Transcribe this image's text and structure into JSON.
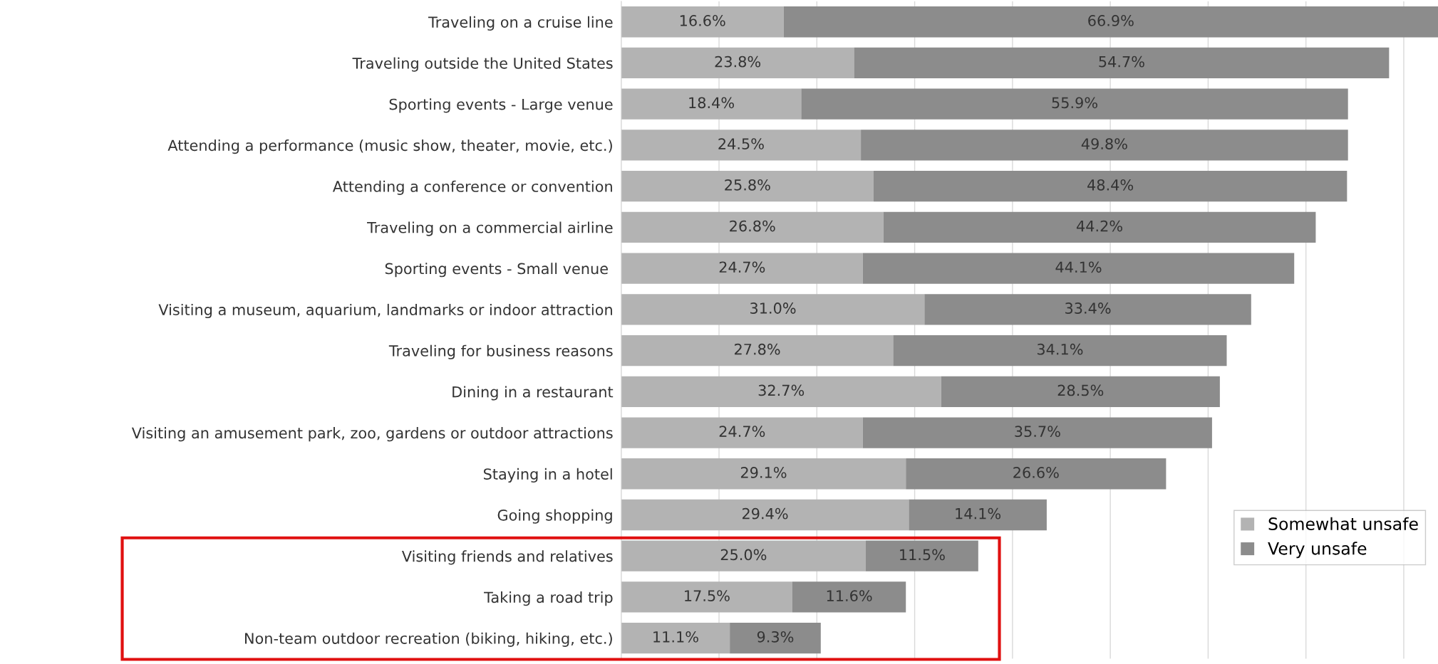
{
  "chart_data": {
    "type": "bar",
    "orientation": "horizontal",
    "stacked": true,
    "categories": [
      "Traveling on a cruise line",
      "Traveling outside the United States",
      "Sporting events - Large venue",
      "Attending a performance (music show, theater, movie, etc.)",
      "Attending a conference or convention",
      "Traveling on a commercial airline",
      "Sporting events - Small venue ",
      "Visiting a museum, aquarium, landmarks or indoor attraction",
      "Traveling for business reasons",
      "Dining in a restaurant",
      "Visiting an amusement park, zoo, gardens or outdoor attractions",
      "Staying in a hotel",
      "Going shopping",
      "Visiting friends and relatives",
      "Taking a road trip",
      "Non-team outdoor recreation (biking, hiking, etc.)"
    ],
    "series": [
      {
        "name": "Somewhat unsafe",
        "color": "#b3b3b3",
        "values": [
          16.6,
          23.8,
          18.4,
          24.5,
          25.8,
          26.8,
          24.7,
          31.0,
          27.8,
          32.7,
          24.7,
          29.1,
          29.4,
          25.0,
          17.5,
          11.1
        ],
        "value_labels": [
          "16.6%",
          "23.8%",
          "18.4%",
          "24.5%",
          "25.8%",
          "26.8%",
          "24.7%",
          "31.0%",
          "27.8%",
          "32.7%",
          "24.7%",
          "29.1%",
          "29.4%",
          "25.0%",
          "17.5%",
          "11.1%"
        ]
      },
      {
        "name": "Very unsafe",
        "color": "#8c8c8c",
        "values": [
          66.9,
          54.7,
          55.9,
          49.8,
          48.4,
          44.2,
          44.1,
          33.4,
          34.1,
          28.5,
          35.7,
          26.6,
          14.1,
          11.5,
          11.6,
          9.3
        ],
        "value_labels": [
          "66.9%",
          "54.7%",
          "55.9%",
          "49.8%",
          "48.4%",
          "44.2%",
          "44.1%",
          "33.4%",
          "34.1%",
          "28.5%",
          "35.7%",
          "26.6%",
          "14.1%",
          "11.5%",
          "11.6%",
          "9.3%"
        ]
      }
    ],
    "xlim": [
      0,
      83.5
    ],
    "xticks": [
      {
        "value": 0,
        "label": null
      },
      {
        "value": 10,
        "label": null
      },
      {
        "value": 20,
        "label": null
      },
      {
        "value": 30,
        "label": null
      },
      {
        "value": 40,
        "label": null
      },
      {
        "value": 50,
        "label": null
      },
      {
        "value": 60,
        "label": null
      },
      {
        "value": 70,
        "label": null
      },
      {
        "value": 80,
        "label": null
      }
    ],
    "tick_labels": "y",
    "grid": "x",
    "legend": "bottom right"
  }
}
